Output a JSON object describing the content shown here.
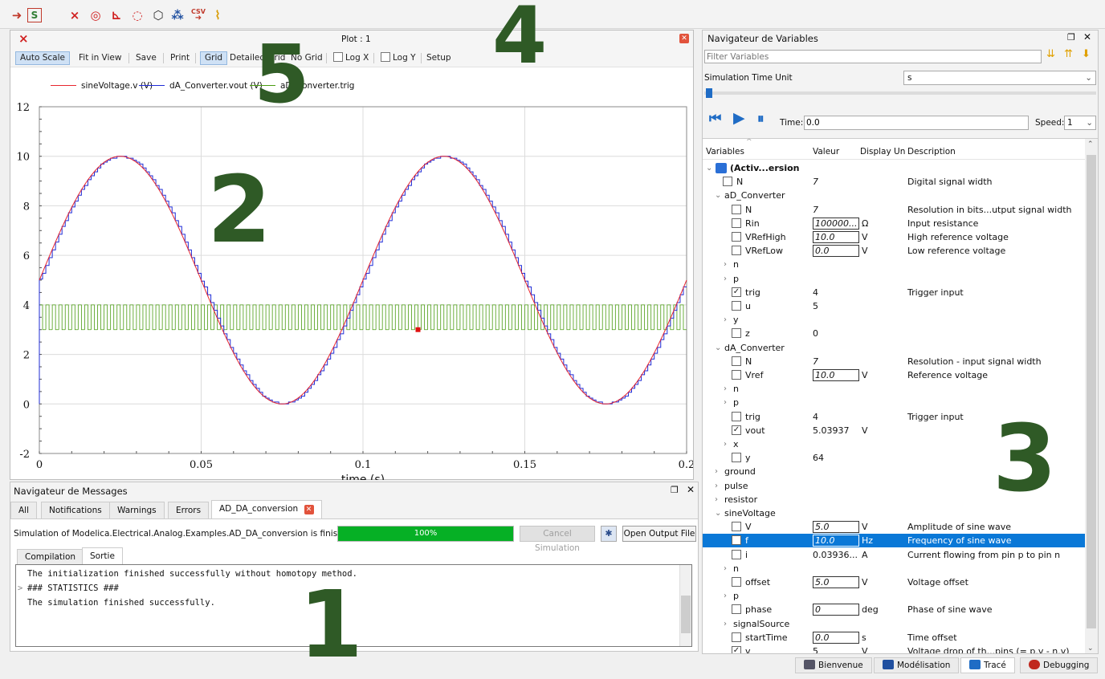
{
  "overlays": {
    "n1": "1",
    "n2": "2",
    "n3": "3",
    "n4": "4",
    "n5": "5"
  },
  "plot": {
    "title": "Plot : 1",
    "tools": {
      "auto_scale": "Auto Scale",
      "fit_in_view": "Fit in View",
      "save": "Save",
      "print": "Print",
      "grid": "Grid",
      "detailed_grid": "Detailed Grid",
      "no_grid": "No Grid",
      "log_x": "Log X",
      "log_y": "Log Y",
      "setup": "Setup"
    }
  },
  "chart_data": {
    "type": "line",
    "xlabel": "time (s)",
    "ylabel": "",
    "xlim": [
      0,
      0.2
    ],
    "ylim": [
      -2,
      12
    ],
    "xticks": [
      "0",
      "0.05",
      "0.1",
      "0.15",
      "0.2"
    ],
    "yticks": [
      "-2",
      "0",
      "2",
      "4",
      "6",
      "8",
      "10",
      "12"
    ],
    "grid": true,
    "legend_position": "top",
    "series": [
      {
        "name": "sineVoltage.v (V)",
        "color": "#e8262f",
        "kind": "sine",
        "offset": 5,
        "amplitude": 5,
        "freq_hz": 10
      },
      {
        "name": "dA_Converter.vout (V)",
        "color": "#1f2bd6",
        "kind": "quantized-sine",
        "levels": 128,
        "ref_v": 10,
        "sample_period_s": 0.001
      },
      {
        "name": "aD_Converter.trig",
        "color": "#4a9c12",
        "kind": "pulse",
        "low": 3,
        "high": 4,
        "period_s": 0.002
      }
    ],
    "cursor_point": {
      "x": 0.117,
      "y": 3.0,
      "color": "#e01010"
    }
  },
  "messages": {
    "title": "Navigateur de Messages",
    "tabs": [
      "All",
      "Notifications",
      "Warnings",
      "Errors",
      "AD_DA_conversion"
    ],
    "status": "Simulation of Modelica.Electrical.Analog.Examples.AD_DA_conversion is finished.",
    "progress": "100%",
    "progress_value": 1.0,
    "cancel": "Cancel Simulation",
    "open_output": "Open Output File",
    "subtabs": [
      "Compilation",
      "Sortie"
    ],
    "output": [
      "The initialization finished successfully without homotopy method.",
      "### STATISTICS ###",
      "The simulation finished successfully."
    ]
  },
  "variables": {
    "title": "Navigateur de Variables",
    "filter_placeholder": "Filter Variables",
    "time_unit_label": "Simulation Time Unit",
    "time_unit": "s",
    "time_label": "Time:",
    "time_value": "0.0",
    "speed_label": "Speed:",
    "speed_value": "1",
    "columns": [
      "Variables",
      "Valeur",
      "Display Un",
      "Description"
    ],
    "rows": [
      {
        "d": 0,
        "exp": "v",
        "label": "(Activ...ersion",
        "bold": true,
        "model": true
      },
      {
        "d": 1,
        "cb": "u",
        "label": "N",
        "val": "7",
        "it": true,
        "desc": "Digital signal width"
      },
      {
        "d": 1,
        "exp": "v",
        "label": "aD_Converter"
      },
      {
        "d": 2,
        "cb": "u",
        "label": "N",
        "val": "7",
        "it": true,
        "desc": "Resolution in bits...utput signal width"
      },
      {
        "d": 2,
        "cb": "u",
        "label": "Rin",
        "val": "100000...",
        "edit": true,
        "unit": "Ω",
        "desc": "Input resistance"
      },
      {
        "d": 2,
        "cb": "u",
        "label": "VRefHigh",
        "val": "10.0",
        "edit": true,
        "unit": "V",
        "desc": "High reference voltage"
      },
      {
        "d": 2,
        "cb": "u",
        "label": "VRefLow",
        "val": "0.0",
        "edit": true,
        "unit": "V",
        "desc": "Low reference voltage"
      },
      {
        "d": 2,
        "exp": ">",
        "label": "n"
      },
      {
        "d": 2,
        "exp": ">",
        "label": "p"
      },
      {
        "d": 2,
        "cb": "c",
        "label": "trig",
        "val": "4",
        "desc": "Trigger input"
      },
      {
        "d": 2,
        "cb": "u",
        "label": "u",
        "val": "5"
      },
      {
        "d": 2,
        "exp": ">",
        "label": "y"
      },
      {
        "d": 2,
        "cb": "u",
        "label": "z",
        "val": "0"
      },
      {
        "d": 1,
        "exp": "v",
        "label": "dA_Converter"
      },
      {
        "d": 2,
        "cb": "u",
        "label": "N",
        "val": "7",
        "it": true,
        "desc": "Resolution - input signal width"
      },
      {
        "d": 2,
        "cb": "u",
        "label": "Vref",
        "val": "10.0",
        "edit": true,
        "unit": "V",
        "desc": "Reference voltage"
      },
      {
        "d": 2,
        "exp": ">",
        "label": "n"
      },
      {
        "d": 2,
        "exp": ">",
        "label": "p"
      },
      {
        "d": 2,
        "cb": "u",
        "label": "trig",
        "val": "4",
        "desc": "Trigger input"
      },
      {
        "d": 2,
        "cb": "c",
        "label": "vout",
        "val": "5.03937",
        "unit": "V"
      },
      {
        "d": 2,
        "exp": ">",
        "label": "x"
      },
      {
        "d": 2,
        "cb": "u",
        "label": "y",
        "val": "64"
      },
      {
        "d": 1,
        "exp": ">",
        "label": "ground"
      },
      {
        "d": 1,
        "exp": ">",
        "label": "pulse"
      },
      {
        "d": 1,
        "exp": ">",
        "label": "resistor"
      },
      {
        "d": 1,
        "exp": "v",
        "label": "sineVoltage"
      },
      {
        "d": 2,
        "cb": "u",
        "label": "V",
        "val": "5.0",
        "edit": true,
        "unit": "V",
        "desc": "Amplitude of sine wave"
      },
      {
        "d": 2,
        "cb": "u",
        "label": "f",
        "val": "10.0",
        "edit": true,
        "unit": "Hz",
        "desc": "Frequency of sine wave",
        "sel": true
      },
      {
        "d": 2,
        "cb": "u",
        "label": "i",
        "val": "0.03936...",
        "unit": "A",
        "desc": "Current flowing from pin p to pin n"
      },
      {
        "d": 2,
        "exp": ">",
        "label": "n"
      },
      {
        "d": 2,
        "cb": "u",
        "label": "offset",
        "val": "5.0",
        "edit": true,
        "unit": "V",
        "desc": "Voltage offset"
      },
      {
        "d": 2,
        "exp": ">",
        "label": "p"
      },
      {
        "d": 2,
        "cb": "u",
        "label": "phase",
        "val": "0",
        "edit": true,
        "unit": "deg",
        "desc": "Phase of sine wave"
      },
      {
        "d": 2,
        "exp": ">",
        "label": "signalSource"
      },
      {
        "d": 2,
        "cb": "u",
        "label": "startTime",
        "val": "0.0",
        "edit": true,
        "unit": "s",
        "desc": "Time offset"
      },
      {
        "d": 2,
        "cb": "c",
        "label": "v",
        "val": "5",
        "unit": "V",
        "desc": "Voltage drop of th...pins (= p.v - n.v)"
      }
    ]
  },
  "perspectives": {
    "tabs": [
      "Bienvenue",
      "Modélisation",
      "Tracé",
      "Debugging"
    ],
    "active": "Tracé"
  }
}
